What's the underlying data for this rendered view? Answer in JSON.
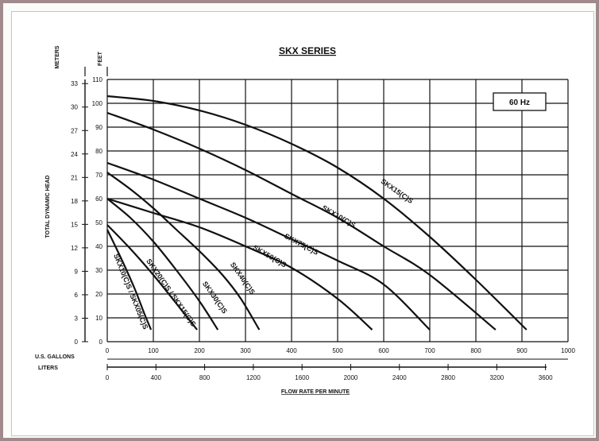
{
  "chart_data": {
    "type": "line",
    "title": "SKX SERIES",
    "annotation": "60 Hz",
    "xlabel": "FLOW RATE PER MINUTE",
    "ylabel": "TOTAL DYNAMIC HEAD",
    "unit_meters": "METERS",
    "unit_feet": "FEET",
    "axis_gallons_label": "U.S. GALLONS",
    "axis_liters_label": "LITERS",
    "x_gallons": {
      "min": 0,
      "max": 1000,
      "ticks": [
        "0",
        "100",
        "200",
        "300",
        "400",
        "500",
        "600",
        "700",
        "800",
        "900",
        "1000"
      ]
    },
    "x_liters": {
      "ticks": [
        "0",
        "400",
        "800",
        "1200",
        "1600",
        "2000",
        "2400",
        "2800",
        "3200",
        "3600"
      ],
      "values": [
        0,
        400,
        800,
        1200,
        1600,
        2000,
        2400,
        2800,
        3200,
        3600
      ]
    },
    "y_feet": {
      "min": 0,
      "max": 110,
      "ticks": [
        "0",
        "10",
        "20",
        "30",
        "40",
        "50",
        "60",
        "70",
        "80",
        "90",
        "100",
        "110"
      ]
    },
    "y_meters": {
      "ticks": [
        "0",
        "3",
        "6",
        "9",
        "12",
        "15",
        "18",
        "21",
        "24",
        "27",
        "30",
        "33"
      ],
      "values": [
        0,
        3,
        6,
        9,
        12,
        15,
        18,
        21,
        24,
        27,
        30,
        33
      ]
    },
    "grid": true,
    "series": [
      {
        "name": "SKX15(C)S",
        "x": [
          0,
          100,
          200,
          300,
          400,
          500,
          600,
          700,
          800,
          910
        ],
        "y": [
          103,
          101,
          97,
          91,
          83,
          73,
          60,
          44,
          26,
          5
        ]
      },
      {
        "name": "SKX10(C)S",
        "x": [
          0,
          100,
          200,
          300,
          400,
          500,
          600,
          700,
          843
        ],
        "y": [
          96,
          89,
          81,
          72,
          62,
          52,
          40,
          28,
          5
        ]
      },
      {
        "name": "SKX75(C)S",
        "x": [
          0,
          100,
          200,
          300,
          400,
          500,
          600,
          700
        ],
        "y": [
          75,
          68,
          60,
          52,
          43,
          34,
          24,
          5
        ]
      },
      {
        "name": "SKX50(C)S",
        "x": [
          0,
          100,
          200,
          300,
          400,
          500,
          575
        ],
        "y": [
          60,
          54,
          48,
          40,
          31,
          18,
          5
        ]
      },
      {
        "name": "SKX40(C)S",
        "x": [
          0,
          50,
          100,
          150,
          200,
          250,
          290,
          330
        ],
        "y": [
          71,
          64,
          56,
          47,
          38,
          28,
          18,
          5
        ]
      },
      {
        "name": "SKX30(C)S",
        "x": [
          0,
          50,
          100,
          150,
          200,
          240
        ],
        "y": [
          60,
          52,
          42,
          30,
          17,
          5
        ]
      },
      {
        "name": "SKX20(C)S / SKX15(C)S",
        "x": [
          0,
          50,
          100,
          150,
          195
        ],
        "y": [
          49,
          39,
          28,
          16,
          5
        ]
      },
      {
        "name": "SKX10(C)S / SKX05(C)S",
        "x": [
          0,
          30,
          60,
          80,
          95
        ],
        "y": [
          47,
          35,
          22,
          12,
          5
        ]
      }
    ]
  }
}
